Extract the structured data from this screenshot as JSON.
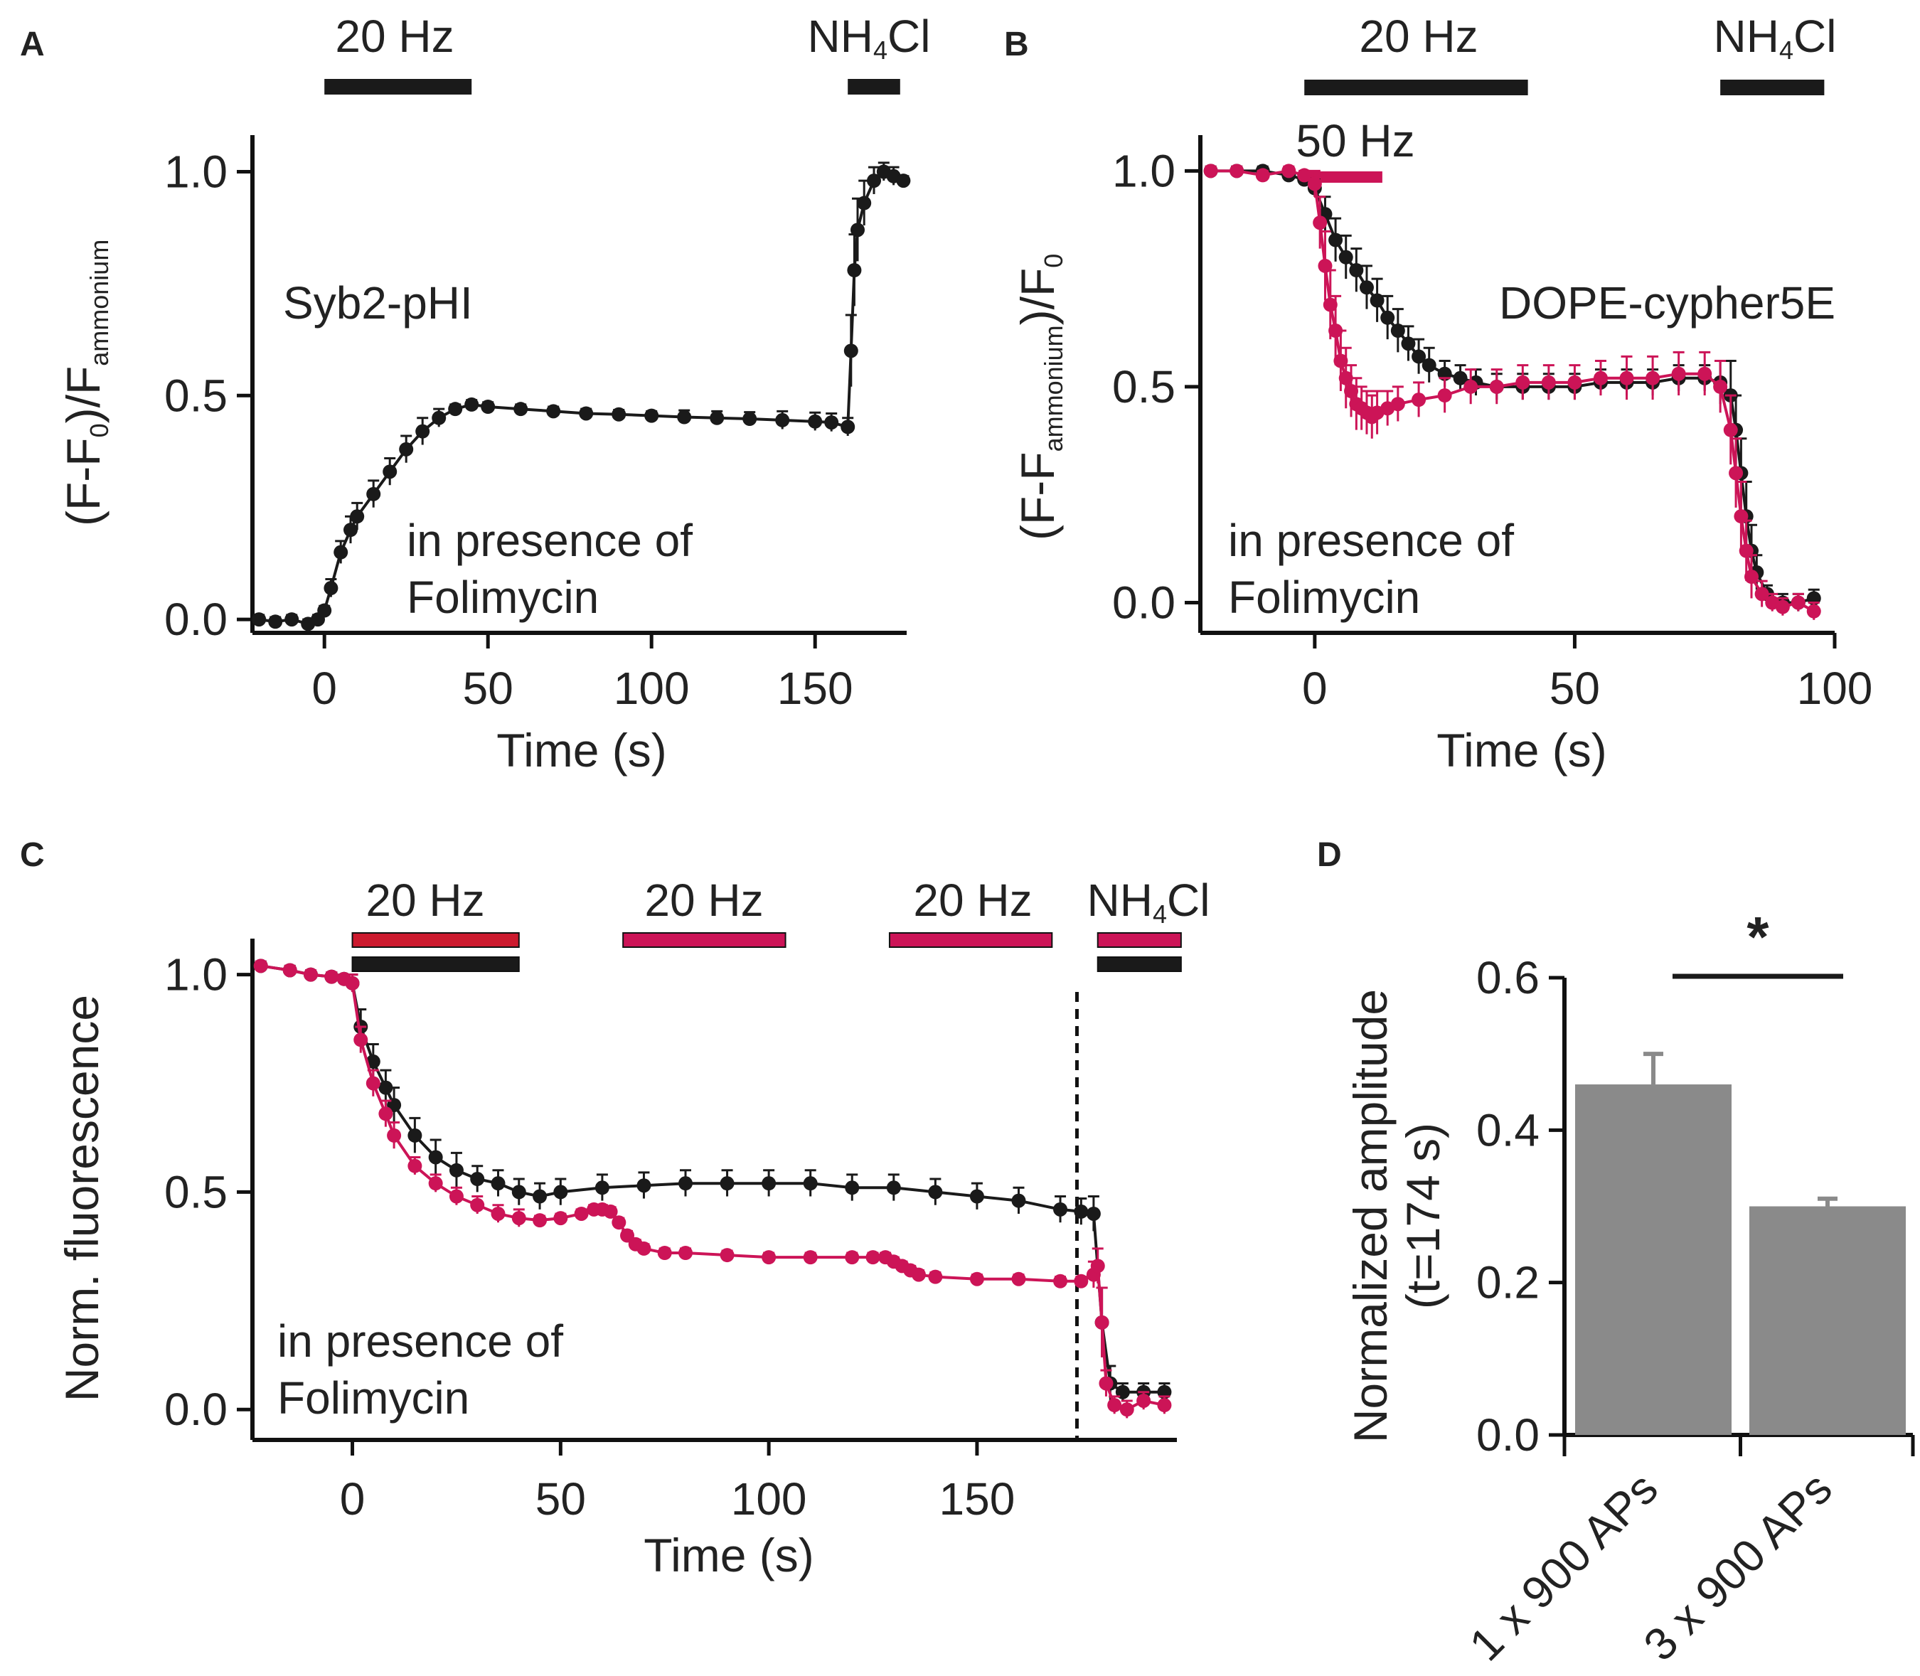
{
  "colors": {
    "black": "#1a1a1a",
    "magenta": "#cc1457",
    "red": "#cc1a2e",
    "bar": "#8a8a8a"
  },
  "panels": {
    "A": {
      "letter": "A",
      "ylabel_main": "(F-F",
      "ylabel_sub0": "0",
      "ylabel_mid": ")/F",
      "ylabel_sub1": "ammonium",
      "xlabel": "Time (s)",
      "label": "Syb2-pHI",
      "note_line1": "in presence of",
      "note_line2": "Folimycin",
      "x_ticks": [
        "0",
        "50",
        "100",
        "150"
      ],
      "y_ticks": [
        "0.0",
        "0.5",
        "1.0"
      ],
      "stim_20hz": "20 Hz",
      "stim_nh4_pre": "NH",
      "stim_nh4_sub": "4",
      "stim_nh4_post": "Cl"
    },
    "B": {
      "letter": "B",
      "ylabel_main": "(F-F",
      "ylabel_sub0": "ammonium",
      "ylabel_mid": ")/F",
      "ylabel_sub1": "0",
      "xlabel": "Time (s)",
      "label": "DOPE-cypher5E",
      "note_line1": "in presence of",
      "note_line2": "Folimycin",
      "x_ticks": [
        "0",
        "50",
        "100"
      ],
      "y_ticks": [
        "0.0",
        "0.5",
        "1.0"
      ],
      "stim_20hz": "20 Hz",
      "stim_50hz": "50 Hz",
      "stim_nh4_pre": "NH",
      "stim_nh4_sub": "4",
      "stim_nh4_post": "Cl"
    },
    "C": {
      "letter": "C",
      "ylabel": "Norm. fluorescence",
      "xlabel": "Time (s)",
      "note_line1": "in presence of",
      "note_line2": "Folimycin",
      "x_ticks": [
        "0",
        "50",
        "100",
        "150"
      ],
      "y_ticks": [
        "0.0",
        "0.5",
        "1.0"
      ],
      "stim1": "20 Hz",
      "stim2": "20 Hz",
      "stim3": "20 Hz",
      "stim_nh4_pre": "NH",
      "stim_nh4_sub": "4",
      "stim_nh4_post": "Cl"
    },
    "D": {
      "letter": "D",
      "ylabel_line1": "Normalized amplitude",
      "ylabel_line2": "(t=174 s)",
      "y_ticks": [
        "0.0",
        "0.2",
        "0.4",
        "0.6"
      ],
      "sig": "*"
    }
  },
  "chart_data": [
    {
      "panel": "A",
      "type": "line",
      "xlabel": "Time (s)",
      "ylabel": "(F-F0)/Fammonium",
      "xlim": [
        -22,
        178
      ],
      "ylim": [
        -0.03,
        1.05
      ],
      "stimuli": [
        {
          "label": "20 Hz",
          "start": 0,
          "end": 45
        },
        {
          "label": "NH4Cl",
          "start": 160,
          "end": 176
        }
      ],
      "series": [
        {
          "name": "Syb2-pHI",
          "color": "#1a1a1a",
          "x": [
            -20,
            -15,
            -10,
            -5,
            -2,
            0,
            2,
            5,
            8,
            10,
            15,
            20,
            25,
            30,
            35,
            40,
            45,
            50,
            60,
            70,
            80,
            90,
            100,
            110,
            120,
            130,
            140,
            150,
            155,
            160,
            161,
            162,
            163,
            165,
            168,
            171,
            174,
            177
          ],
          "y": [
            0.0,
            -0.005,
            0.0,
            -0.01,
            0.0,
            0.02,
            0.07,
            0.15,
            0.2,
            0.23,
            0.28,
            0.33,
            0.38,
            0.42,
            0.45,
            0.47,
            0.48,
            0.475,
            0.47,
            0.465,
            0.46,
            0.458,
            0.455,
            0.452,
            0.45,
            0.448,
            0.445,
            0.442,
            0.44,
            0.43,
            0.6,
            0.78,
            0.87,
            0.93,
            0.98,
            1.0,
            0.99,
            0.98
          ],
          "err": [
            0.01,
            0.01,
            0.01,
            0.01,
            0.01,
            0.01,
            0.02,
            0.025,
            0.03,
            0.03,
            0.03,
            0.03,
            0.03,
            0.03,
            0.02,
            0.01,
            0.01,
            0.01,
            0.01,
            0.01,
            0.01,
            0.01,
            0.01,
            0.015,
            0.015,
            0.015,
            0.02,
            0.02,
            0.02,
            0.02,
            0.08,
            0.08,
            0.07,
            0.05,
            0.03,
            0.02,
            0.02,
            0.01
          ]
        }
      ]
    },
    {
      "panel": "B",
      "type": "line",
      "xlabel": "Time (s)",
      "ylabel": "(F-Fammonium)/F0",
      "xlim": [
        -22,
        100
      ],
      "ylim": [
        -0.07,
        1.05
      ],
      "stimuli": [
        {
          "label": "20 Hz",
          "start": -2,
          "end": 41,
          "color": "#1a1a1a"
        },
        {
          "label": "50 Hz",
          "start": -1,
          "end": 13,
          "color": "#cc1457"
        },
        {
          "label": "NH4Cl",
          "start": 78,
          "end": 98,
          "color": "#1a1a1a"
        }
      ],
      "series": [
        {
          "name": "20 Hz",
          "color": "#1a1a1a",
          "x": [
            -20,
            -15,
            -10,
            -5,
            -2,
            0,
            2,
            4,
            6,
            8,
            10,
            12,
            14,
            16,
            18,
            20,
            22,
            25,
            28,
            31,
            35,
            40,
            45,
            50,
            55,
            60,
            65,
            70,
            75,
            78,
            80,
            81,
            82,
            83,
            84,
            85,
            87,
            90,
            93,
            96
          ],
          "y": [
            1.0,
            1.0,
            1.0,
            0.99,
            0.98,
            0.96,
            0.9,
            0.84,
            0.8,
            0.77,
            0.73,
            0.7,
            0.66,
            0.63,
            0.6,
            0.57,
            0.55,
            0.53,
            0.52,
            0.51,
            0.5,
            0.5,
            0.5,
            0.5,
            0.51,
            0.51,
            0.51,
            0.52,
            0.52,
            0.51,
            0.48,
            0.4,
            0.3,
            0.2,
            0.12,
            0.07,
            0.02,
            0.0,
            0.0,
            0.01
          ],
          "err": [
            0.01,
            0.01,
            0.01,
            0.01,
            0.01,
            0.02,
            0.04,
            0.05,
            0.05,
            0.05,
            0.05,
            0.05,
            0.05,
            0.05,
            0.04,
            0.04,
            0.04,
            0.03,
            0.03,
            0.03,
            0.03,
            0.03,
            0.03,
            0.03,
            0.03,
            0.03,
            0.03,
            0.03,
            0.03,
            0.05,
            0.08,
            0.08,
            0.08,
            0.08,
            0.06,
            0.04,
            0.02,
            0.02,
            0.02,
            0.02
          ]
        },
        {
          "name": "50 Hz",
          "color": "#cc1457",
          "x": [
            -20,
            -15,
            -10,
            -5,
            -2,
            0,
            1,
            2,
            3,
            4,
            5,
            6,
            7,
            8,
            9,
            10,
            11,
            12,
            14,
            16,
            20,
            25,
            30,
            35,
            40,
            45,
            50,
            55,
            60,
            65,
            70,
            75,
            78,
            80,
            81,
            82,
            83,
            84,
            86,
            88,
            90,
            93,
            96
          ],
          "y": [
            1.0,
            1.0,
            0.99,
            1.0,
            0.99,
            0.97,
            0.88,
            0.78,
            0.69,
            0.63,
            0.56,
            0.52,
            0.49,
            0.46,
            0.45,
            0.44,
            0.43,
            0.44,
            0.45,
            0.46,
            0.47,
            0.48,
            0.5,
            0.5,
            0.51,
            0.51,
            0.51,
            0.52,
            0.52,
            0.52,
            0.53,
            0.53,
            0.5,
            0.4,
            0.3,
            0.2,
            0.12,
            0.06,
            0.02,
            0.0,
            -0.01,
            0.0,
            -0.02
          ],
          "err": [
            0.01,
            0.01,
            0.01,
            0.01,
            0.01,
            0.03,
            0.06,
            0.08,
            0.08,
            0.08,
            0.07,
            0.07,
            0.06,
            0.06,
            0.05,
            0.05,
            0.05,
            0.05,
            0.04,
            0.04,
            0.04,
            0.04,
            0.04,
            0.04,
            0.04,
            0.04,
            0.04,
            0.04,
            0.05,
            0.05,
            0.05,
            0.05,
            0.06,
            0.08,
            0.08,
            0.08,
            0.07,
            0.05,
            0.03,
            0.02,
            0.02,
            0.02,
            0.02
          ]
        }
      ]
    },
    {
      "panel": "C",
      "type": "line",
      "xlabel": "Time (s)",
      "ylabel": "Norm. fluorescence",
      "xlim": [
        -24,
        198
      ],
      "ylim": [
        -0.07,
        1.05
      ],
      "reference_line_x": 174,
      "stimuli": [
        {
          "label": "20 Hz",
          "start": 0,
          "end": 40,
          "colors": [
            "#cc1a2e",
            "#1a1a1a"
          ]
        },
        {
          "label": "20 Hz",
          "start": 65,
          "end": 104,
          "colors": [
            "#cc1457"
          ]
        },
        {
          "label": "20 Hz",
          "start": 129,
          "end": 168,
          "colors": [
            "#cc1457"
          ]
        },
        {
          "label": "NH4Cl",
          "start": 179,
          "end": 199,
          "colors": [
            "#cc1457",
            "#1a1a1a"
          ]
        }
      ],
      "series": [
        {
          "name": "1 x 900 APs",
          "color": "#1a1a1a",
          "x": [
            -22,
            -15,
            -10,
            -5,
            -2,
            0,
            2,
            5,
            8,
            10,
            15,
            20,
            25,
            30,
            35,
            40,
            45,
            50,
            60,
            70,
            80,
            90,
            100,
            110,
            120,
            130,
            140,
            150,
            160,
            170,
            175,
            178,
            180,
            182,
            185,
            190,
            195
          ],
          "y": [
            1.02,
            1.01,
            1.0,
            0.995,
            0.99,
            0.98,
            0.88,
            0.8,
            0.74,
            0.7,
            0.63,
            0.58,
            0.55,
            0.53,
            0.52,
            0.5,
            0.49,
            0.5,
            0.51,
            0.515,
            0.52,
            0.52,
            0.52,
            0.52,
            0.51,
            0.51,
            0.5,
            0.49,
            0.48,
            0.46,
            0.455,
            0.45,
            0.2,
            0.06,
            0.04,
            0.04,
            0.04
          ],
          "err": [
            0.01,
            0.01,
            0.01,
            0.01,
            0.01,
            0.02,
            0.04,
            0.04,
            0.04,
            0.04,
            0.04,
            0.04,
            0.04,
            0.03,
            0.03,
            0.03,
            0.03,
            0.03,
            0.03,
            0.03,
            0.03,
            0.03,
            0.03,
            0.03,
            0.03,
            0.03,
            0.03,
            0.03,
            0.03,
            0.03,
            0.03,
            0.04,
            0.08,
            0.04,
            0.02,
            0.02,
            0.02
          ]
        },
        {
          "name": "3 x 900 APs",
          "color": "#cc1457",
          "x": [
            -22,
            -15,
            -10,
            -5,
            -2,
            0,
            2,
            5,
            8,
            10,
            15,
            20,
            25,
            30,
            35,
            40,
            45,
            50,
            55,
            58,
            60,
            62,
            64,
            66,
            68,
            70,
            75,
            80,
            90,
            100,
            110,
            120,
            125,
            128,
            130,
            132,
            134,
            136,
            140,
            150,
            160,
            170,
            175,
            178,
            179,
            180,
            181,
            183,
            186,
            190,
            195
          ],
          "y": [
            1.02,
            1.01,
            1.0,
            0.995,
            0.99,
            0.98,
            0.85,
            0.75,
            0.68,
            0.63,
            0.56,
            0.52,
            0.49,
            0.47,
            0.45,
            0.44,
            0.435,
            0.44,
            0.45,
            0.46,
            0.46,
            0.455,
            0.43,
            0.4,
            0.38,
            0.37,
            0.36,
            0.36,
            0.355,
            0.35,
            0.35,
            0.35,
            0.35,
            0.35,
            0.34,
            0.33,
            0.32,
            0.31,
            0.305,
            0.3,
            0.3,
            0.295,
            0.295,
            0.31,
            0.33,
            0.2,
            0.06,
            0.01,
            0.0,
            0.02,
            0.01
          ],
          "err": [
            0.01,
            0.01,
            0.01,
            0.01,
            0.01,
            0.02,
            0.03,
            0.03,
            0.03,
            0.03,
            0.02,
            0.02,
            0.02,
            0.02,
            0.02,
            0.02,
            0.01,
            0.01,
            0.01,
            0.01,
            0.01,
            0.01,
            0.01,
            0.01,
            0.01,
            0.01,
            0.01,
            0.01,
            0.01,
            0.01,
            0.01,
            0.01,
            0.01,
            0.01,
            0.01,
            0.01,
            0.01,
            0.01,
            0.01,
            0.01,
            0.01,
            0.01,
            0.01,
            0.03,
            0.04,
            0.08,
            0.03,
            0.02,
            0.02,
            0.02,
            0.02
          ]
        }
      ]
    },
    {
      "panel": "D",
      "type": "bar",
      "ylabel": "Normalized amplitude (t=174 s)",
      "ylim": [
        0,
        0.6
      ],
      "categories": [
        "1 x 900 APs",
        "3 x 900 APs"
      ],
      "values": [
        0.46,
        0.3
      ],
      "errors": [
        0.04,
        0.01
      ],
      "color": "#8a8a8a",
      "significance": "*"
    }
  ]
}
